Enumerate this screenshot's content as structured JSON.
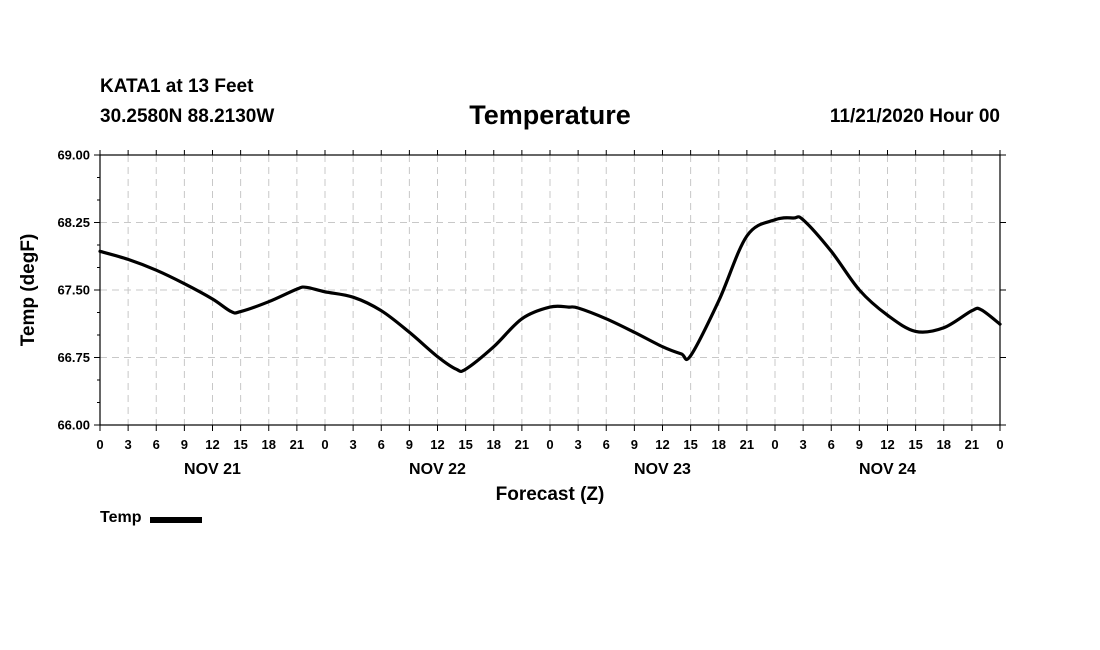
{
  "header": {
    "station": "KATA1 at 13 Feet",
    "coords": "30.2580N 88.2130W",
    "title": "Temperature",
    "run_time": "11/21/2020 Hour 00"
  },
  "legend": {
    "label": "Temp"
  },
  "chart_data": {
    "type": "line",
    "title": "Temperature",
    "xlabel": "Forecast (Z)",
    "ylabel": "Temp (degF)",
    "ylim": [
      66.0,
      69.0
    ],
    "yticks": [
      "66.00",
      "66.75",
      "67.50",
      "68.25",
      "69.00"
    ],
    "xlim_hours": [
      0,
      96
    ],
    "xtick_labels": [
      "0",
      "3",
      "6",
      "9",
      "12",
      "15",
      "18",
      "21",
      "0",
      "3",
      "6",
      "9",
      "12",
      "15",
      "18",
      "21",
      "0",
      "3",
      "6",
      "9",
      "12",
      "15",
      "18",
      "21",
      "0",
      "3",
      "6",
      "9",
      "12",
      "15",
      "18",
      "21",
      "0"
    ],
    "day_labels": [
      "NOV 21",
      "NOV 22",
      "NOV 23",
      "NOV 24"
    ],
    "grid": true,
    "legend_position": "bottom-left",
    "series": [
      {
        "name": "Temp",
        "color": "#000000",
        "x": [
          0,
          3,
          6,
          9,
          12,
          14,
          15,
          18,
          21,
          22,
          24,
          27,
          30,
          33,
          36,
          38,
          39,
          42,
          45,
          48,
          50,
          51,
          54,
          57,
          60,
          62,
          63,
          66,
          69,
          72,
          74,
          75,
          78,
          81,
          84,
          87,
          90,
          93,
          94,
          96
        ],
        "y": [
          67.93,
          67.84,
          67.72,
          67.57,
          67.4,
          67.26,
          67.26,
          67.37,
          67.51,
          67.53,
          67.48,
          67.42,
          67.27,
          67.03,
          66.76,
          66.62,
          66.62,
          66.87,
          67.18,
          67.31,
          67.31,
          67.3,
          67.18,
          67.03,
          66.87,
          66.79,
          66.77,
          67.38,
          68.1,
          68.28,
          68.3,
          68.28,
          67.93,
          67.5,
          67.22,
          67.04,
          67.08,
          67.27,
          67.28,
          67.12
        ]
      }
    ]
  }
}
